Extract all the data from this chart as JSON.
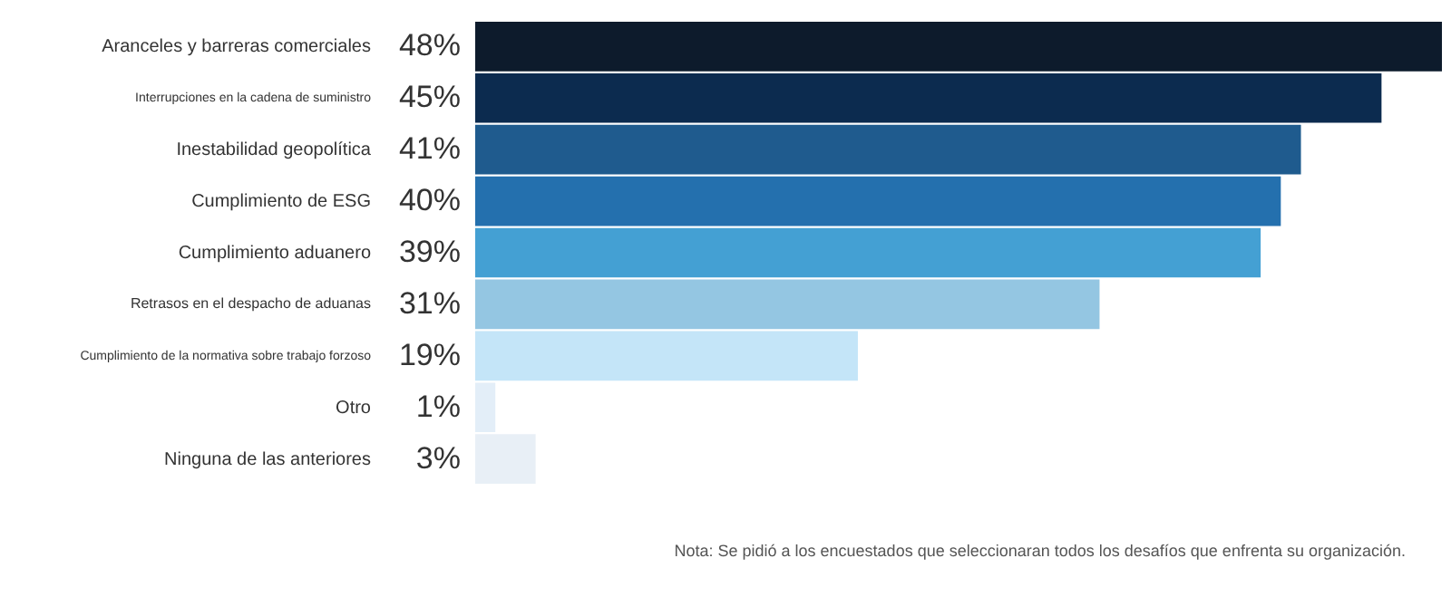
{
  "chart_data": {
    "type": "bar",
    "orientation": "horizontal",
    "categories": [
      "Aranceles y barreras comerciales",
      "Interrupciones en la cadena de suministro",
      "Inestabilidad geopolítica",
      "Cumplimiento de ESG",
      "Cumplimiento aduanero",
      "Retrasos en el despacho de aduanas",
      "Cumplimiento de la normativa sobre trabajo forzoso",
      "Otro",
      "Ninguna de las anteriores"
    ],
    "values": [
      48,
      45,
      41,
      40,
      39,
      31,
      19,
      1,
      3
    ],
    "value_labels": [
      "48%",
      "45%",
      "41%",
      "40%",
      "39%",
      "31%",
      "19%",
      "1%",
      "3%"
    ],
    "colors": [
      "#0d1b2c",
      "#0c2b4f",
      "#1f5b8e",
      "#2470ae",
      "#44a0d3",
      "#94c6e2",
      "#c4e5f8",
      "#e3eef8",
      "#e8eff6"
    ],
    "annotations": [
      "Nota: Se pidió a los encuestados que seleccionaran todos los desafíos que enfrenta su organización."
    ],
    "grid": false
  }
}
